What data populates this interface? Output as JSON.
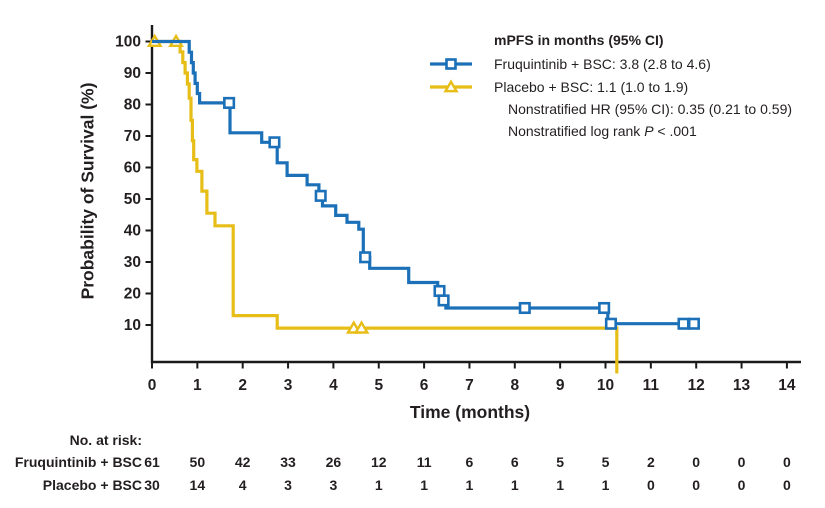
{
  "figure": {
    "background": "#ffffff",
    "text_color": "#231f20",
    "axis_color": "#1a1a1a"
  },
  "chart_data": {
    "type": "line",
    "subtype": "kaplan-meier-step",
    "title": "",
    "xlabel": "Time (months)",
    "ylabel": "Probability of Survival (%)",
    "xlim": [
      0,
      14
    ],
    "ylim": [
      0,
      100
    ],
    "xticks": [
      0,
      1,
      2,
      3,
      4,
      5,
      6,
      7,
      8,
      9,
      10,
      11,
      12,
      13,
      14
    ],
    "yticks": [
      10,
      20,
      30,
      40,
      50,
      60,
      70,
      80,
      90,
      100
    ],
    "grid": false,
    "legend_position": "top-right",
    "series": [
      {
        "name": "Fruquintinib + BSC",
        "color": "#1b70b8",
        "marker": "square",
        "step_points": [
          [
            0,
            100
          ],
          [
            0.82,
            100
          ],
          [
            0.82,
            96.6
          ],
          [
            0.87,
            96.6
          ],
          [
            0.87,
            93.3
          ],
          [
            0.91,
            93.3
          ],
          [
            0.91,
            90
          ],
          [
            0.95,
            90
          ],
          [
            0.95,
            86.7
          ],
          [
            1.0,
            86.7
          ],
          [
            1.0,
            83.5
          ],
          [
            1.05,
            83.5
          ],
          [
            1.05,
            80.5
          ],
          [
            1.72,
            80.5
          ],
          [
            1.72,
            71
          ],
          [
            2.42,
            71
          ],
          [
            2.42,
            68
          ],
          [
            2.76,
            68
          ],
          [
            2.76,
            61.5
          ],
          [
            2.98,
            61.5
          ],
          [
            2.98,
            57.5
          ],
          [
            3.42,
            57.5
          ],
          [
            3.42,
            54.5
          ],
          [
            3.68,
            54.5
          ],
          [
            3.68,
            51
          ],
          [
            3.76,
            51
          ],
          [
            3.76,
            47.8
          ],
          [
            4.05,
            47.8
          ],
          [
            4.05,
            44.8
          ],
          [
            4.3,
            44.8
          ],
          [
            4.3,
            42.6
          ],
          [
            4.56,
            42.6
          ],
          [
            4.56,
            40.4
          ],
          [
            4.66,
            40.4
          ],
          [
            4.66,
            31.5
          ],
          [
            4.8,
            31.5
          ],
          [
            4.8,
            28
          ],
          [
            5.66,
            28
          ],
          [
            5.66,
            23.5
          ],
          [
            6.3,
            23.5
          ],
          [
            6.3,
            20.8
          ],
          [
            6.38,
            20.8
          ],
          [
            6.38,
            17.8
          ],
          [
            6.48,
            17.8
          ],
          [
            6.48,
            15.4
          ],
          [
            10.05,
            15.4
          ],
          [
            10.05,
            10.4
          ],
          [
            12.05,
            10.4
          ]
        ],
        "censor_marks": [
          [
            1.7,
            80.5
          ],
          [
            2.7,
            68
          ],
          [
            3.72,
            51
          ],
          [
            4.7,
            31.5
          ],
          [
            6.34,
            20.8
          ],
          [
            6.43,
            17.8
          ],
          [
            8.22,
            15.4
          ],
          [
            9.97,
            15.4
          ],
          [
            10.12,
            10.4
          ],
          [
            11.72,
            10.4
          ],
          [
            11.95,
            10.4
          ]
        ],
        "terminal_drop": false
      },
      {
        "name": "Placebo + BSC",
        "color": "#e7bd18",
        "marker": "triangle",
        "step_points": [
          [
            0,
            100
          ],
          [
            0.62,
            100
          ],
          [
            0.62,
            96.7
          ],
          [
            0.68,
            96.7
          ],
          [
            0.68,
            93.3
          ],
          [
            0.73,
            93.3
          ],
          [
            0.73,
            90
          ],
          [
            0.78,
            90
          ],
          [
            0.78,
            86.5
          ],
          [
            0.82,
            86.5
          ],
          [
            0.82,
            82
          ],
          [
            0.86,
            82
          ],
          [
            0.86,
            75
          ],
          [
            0.89,
            75
          ],
          [
            0.89,
            68.5
          ],
          [
            0.92,
            68.5
          ],
          [
            0.92,
            62.5
          ],
          [
            0.99,
            62.5
          ],
          [
            0.99,
            58.8
          ],
          [
            1.1,
            58.8
          ],
          [
            1.1,
            52.5
          ],
          [
            1.21,
            52.5
          ],
          [
            1.21,
            45.5
          ],
          [
            1.39,
            45.5
          ],
          [
            1.39,
            41.5
          ],
          [
            1.79,
            41.5
          ],
          [
            1.79,
            13
          ],
          [
            2.76,
            13
          ],
          [
            2.76,
            9
          ],
          [
            10.25,
            9
          ],
          [
            10.25,
            0
          ]
        ],
        "censor_marks": [
          [
            0.06,
            100
          ],
          [
            0.53,
            100
          ],
          [
            4.45,
            9
          ],
          [
            4.62,
            9
          ]
        ],
        "terminal_drop": true
      }
    ],
    "legend": {
      "title": "mPFS in months (95% CI)",
      "entries": [
        {
          "label": "Fruquintinib + BSC: 3.8 (2.8 to 4.6)"
        },
        {
          "label": "Placebo + BSC: 1.1 (1.0 to 1.9)"
        }
      ],
      "annotations": {
        "hr": "Nonstratified HR (95% CI): 0.35 (0.21 to 0.59)",
        "logrank_pre": "Nonstratified log rank ",
        "logrank_p": "P",
        "logrank_post": " < .001"
      }
    },
    "at_risk": {
      "title": "No. at risk:",
      "rows": [
        {
          "label": "Fruquintinib + BSC",
          "values": [
            61,
            50,
            42,
            33,
            26,
            12,
            11,
            6,
            6,
            5,
            5,
            2,
            0,
            0,
            0
          ]
        },
        {
          "label": "Placebo + BSC",
          "values": [
            30,
            14,
            4,
            3,
            3,
            1,
            1,
            1,
            1,
            1,
            1,
            0,
            0,
            0,
            0
          ]
        }
      ]
    }
  }
}
